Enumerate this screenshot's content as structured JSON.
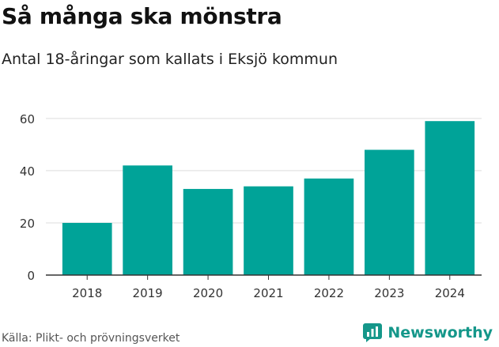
{
  "title": "Så många ska mönstra",
  "subtitle": "Antal 18-åringar som kallats i Eksjö kommun",
  "source": "Källa: Plikt- och prövningsverket",
  "brand": {
    "name": "Newsworthy",
    "icon": "newsworthy-logo-icon",
    "color": "#15978a"
  },
  "colors": {
    "bar": "#00a398",
    "grid": "#dddddd",
    "axis": "#333333"
  },
  "chart_data": {
    "type": "bar",
    "categories": [
      "2018",
      "2019",
      "2020",
      "2021",
      "2022",
      "2023",
      "2024"
    ],
    "values": [
      20,
      42,
      33,
      34,
      37,
      48,
      59
    ],
    "yticks": [
      0,
      20,
      40,
      60
    ],
    "ylim": [
      0,
      63
    ],
    "grid": true,
    "legend": "none"
  }
}
